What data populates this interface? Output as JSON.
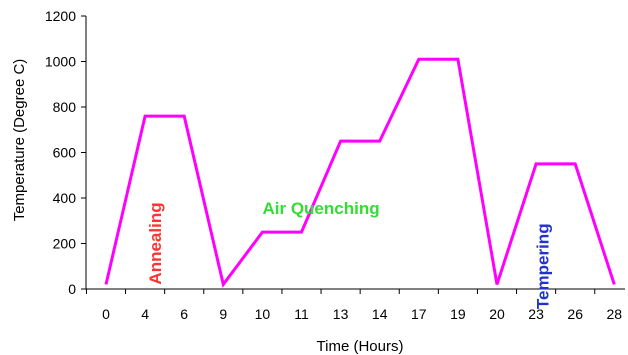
{
  "chart_data": {
    "type": "line",
    "title": "",
    "xlabel": "Time (Hours)",
    "ylabel": "Temperature (Degree C)",
    "ylim": [
      0,
      1200
    ],
    "yticks": [
      "0",
      "200",
      "400",
      "600",
      "800",
      "1000",
      "1200"
    ],
    "categories": [
      "0",
      "4",
      "6",
      "9",
      "10",
      "11",
      "13",
      "14",
      "17",
      "19",
      "20",
      "23",
      "26",
      "28"
    ],
    "grid": false,
    "legend": "none",
    "series": [
      {
        "color": "#ff00ff",
        "x": [
          "0",
          "4",
          "6",
          "9",
          "10",
          "11",
          "13",
          "14",
          "17",
          "19",
          "20",
          "23",
          "26",
          "28"
        ],
        "y": [
          20,
          760,
          760,
          20,
          250,
          250,
          650,
          650,
          1010,
          1010,
          20,
          550,
          550,
          20
        ]
      }
    ],
    "annotations": [
      {
        "text": "Annealing",
        "color": "#ff3333",
        "rotation": -90,
        "x_category": "4.5",
        "y": 200
      },
      {
        "text": "Air Quenching",
        "color": "#33dd33",
        "rotation": 0,
        "x_category": "12",
        "y": 330
      },
      {
        "text": "Tempering",
        "color": "#2233cc",
        "rotation": -90,
        "x_category": "23.5",
        "y": 100
      }
    ]
  }
}
